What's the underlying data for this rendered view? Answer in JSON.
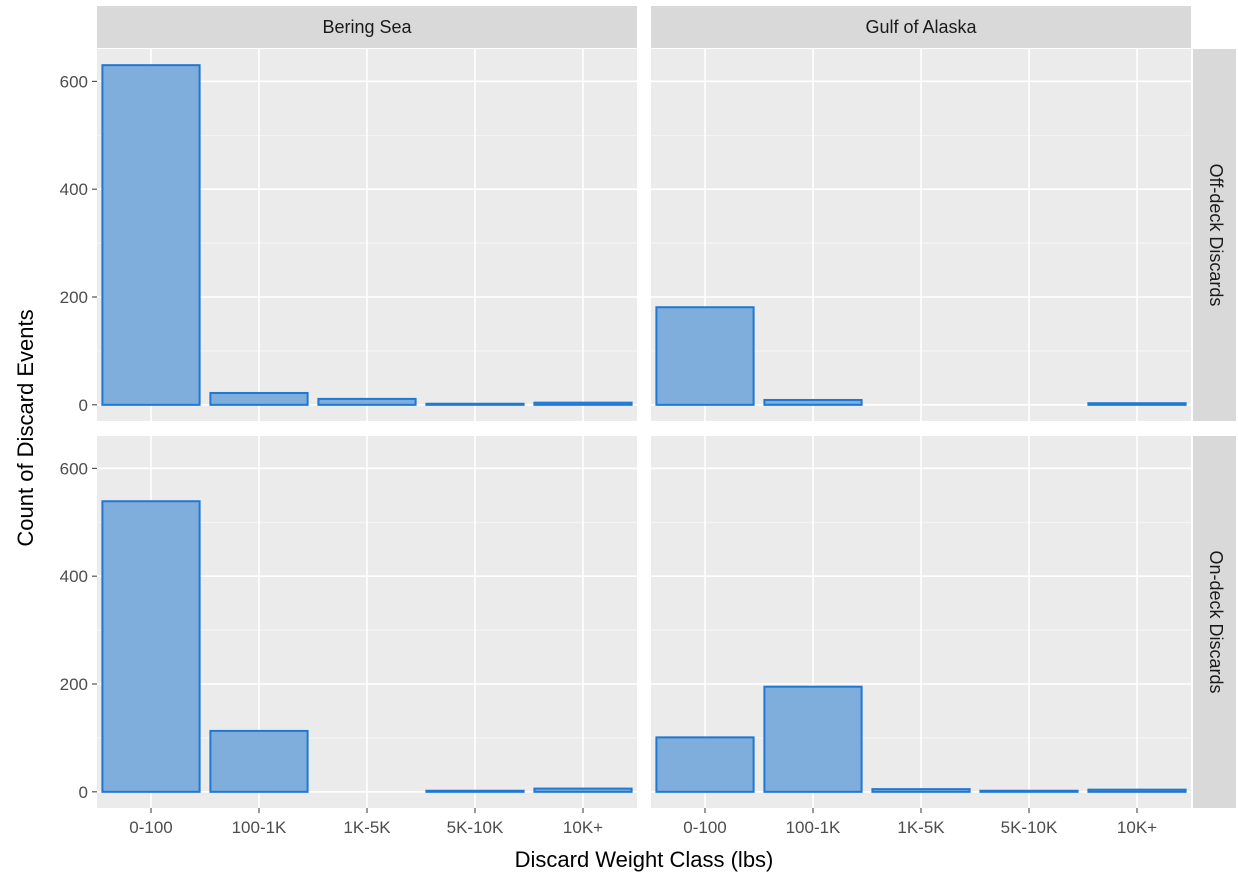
{
  "chart_data": {
    "type": "bar",
    "facet_layout": "grid",
    "xlabel": "Discard Weight Class (lbs)",
    "ylabel": "Count of Discard Events",
    "categories": [
      "0-100",
      "100-1K",
      "1K-5K",
      "5K-10K",
      "10K+"
    ],
    "ylim": [
      -30,
      660
    ],
    "yticks": [
      0,
      200,
      400,
      600
    ],
    "grid": true,
    "column_facets": [
      "Bering Sea",
      "Gulf of Alaska"
    ],
    "row_facets": [
      "Off-deck Discards",
      "On-deck Discards"
    ],
    "panels": [
      {
        "column": "Bering Sea",
        "row": "Off-deck Discards",
        "values": [
          630,
          22,
          11,
          2,
          4
        ]
      },
      {
        "column": "Gulf of Alaska",
        "row": "Off-deck Discards",
        "values": [
          181,
          9,
          0,
          0,
          3
        ]
      },
      {
        "column": "Bering Sea",
        "row": "On-deck Discards",
        "values": [
          539,
          113,
          0,
          2,
          6
        ]
      },
      {
        "column": "Gulf of Alaska",
        "row": "On-deck Discards",
        "values": [
          101,
          195,
          5,
          2,
          4
        ]
      }
    ],
    "colors": {
      "bar_fill": "#7FAEDD",
      "bar_stroke": "#1F78D1",
      "panel_bg": "#EBEBEB",
      "strip_bg": "#D9D9D9",
      "grid": "#FFFFFF"
    }
  }
}
